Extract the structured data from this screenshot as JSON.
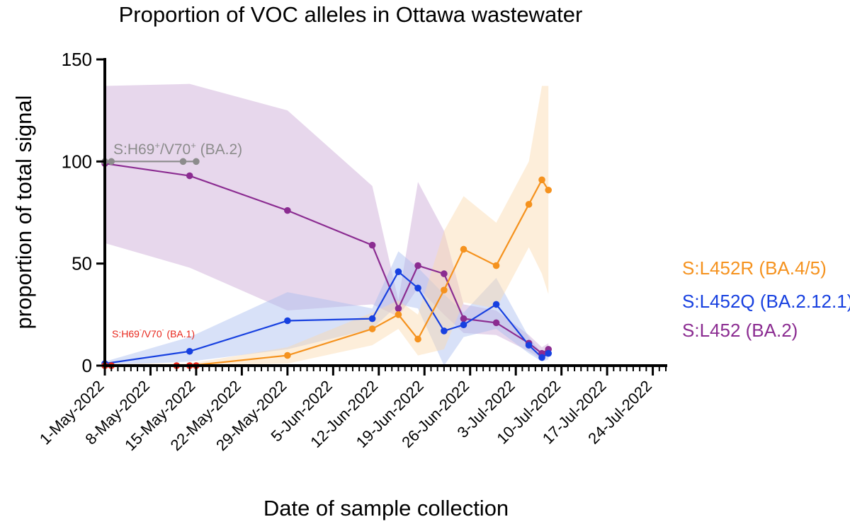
{
  "chart_data": {
    "type": "line",
    "title": "Proportion of VOC alleles in Ottawa wastewater",
    "xlabel": "Date of sample collection",
    "ylabel": "proportion of total signal",
    "xlim": [
      "2022-05-01",
      "2022-07-26"
    ],
    "ylim": [
      0,
      150
    ],
    "y_ticks": [
      0,
      50,
      100,
      150
    ],
    "x_ticks": [
      {
        "date": "2022-05-01",
        "label": "1-May-2022"
      },
      {
        "date": "2022-05-08",
        "label": "8-May-2022"
      },
      {
        "date": "2022-05-15",
        "label": "15-May-2022"
      },
      {
        "date": "2022-05-22",
        "label": "22-May-2022"
      },
      {
        "date": "2022-05-29",
        "label": "29-May-2022"
      },
      {
        "date": "2022-06-05",
        "label": "5-Jun-2022"
      },
      {
        "date": "2022-06-12",
        "label": "12-Jun-2022"
      },
      {
        "date": "2022-06-19",
        "label": "19-Jun-2022"
      },
      {
        "date": "2022-06-26",
        "label": "26-Jun-2022"
      },
      {
        "date": "2022-07-03",
        "label": "3-Jul-2022"
      },
      {
        "date": "2022-07-10",
        "label": "10-Jul-2022"
      },
      {
        "date": "2022-07-17",
        "label": "17-Jul-2022"
      },
      {
        "date": "2022-07-24",
        "label": "24-Jul-2022"
      }
    ],
    "grid": false,
    "legend_position": "right",
    "series": [
      {
        "key": "L452",
        "name": "S:L452 (BA.2)",
        "color": "#8B2C91",
        "band_color": "#C9A6D4",
        "points": [
          {
            "x": "2022-05-01",
            "y": 99,
            "lo": 60,
            "hi": 137
          },
          {
            "x": "2022-05-14",
            "y": 93,
            "lo": 48,
            "hi": 138
          },
          {
            "x": "2022-05-29",
            "y": 76,
            "lo": 27,
            "hi": 125
          },
          {
            "x": "2022-06-11",
            "y": 59,
            "lo": 30,
            "hi": 88
          },
          {
            "x": "2022-06-15",
            "y": 28,
            "lo": 24,
            "hi": 32
          },
          {
            "x": "2022-06-18",
            "y": 49,
            "lo": 38,
            "hi": 90
          },
          {
            "x": "2022-06-22",
            "y": 45,
            "lo": 25,
            "hi": 66
          },
          {
            "x": "2022-06-25",
            "y": 23,
            "lo": 16,
            "hi": 30
          },
          {
            "x": "2022-06-30",
            "y": 21,
            "lo": 15,
            "hi": 27
          },
          {
            "x": "2022-07-05",
            "y": 11,
            "lo": 7,
            "hi": 15
          },
          {
            "x": "2022-07-07",
            "y": 6,
            "lo": 3,
            "hi": 9
          },
          {
            "x": "2022-07-08",
            "y": 8,
            "lo": 5,
            "hi": 11
          }
        ]
      },
      {
        "key": "L452Q",
        "name": "S:L452Q (BA.2.12.1)",
        "color": "#1740E0",
        "band_color": "#A9BDF0",
        "points": [
          {
            "x": "2022-05-01",
            "y": 1,
            "lo": 0,
            "hi": 2
          },
          {
            "x": "2022-05-14",
            "y": 7,
            "lo": 2,
            "hi": 14
          },
          {
            "x": "2022-05-29",
            "y": 22,
            "lo": 8,
            "hi": 36
          },
          {
            "x": "2022-06-11",
            "y": 23,
            "lo": 18,
            "hi": 28
          },
          {
            "x": "2022-06-15",
            "y": 46,
            "lo": 30,
            "hi": 56
          },
          {
            "x": "2022-06-18",
            "y": 38,
            "lo": 28,
            "hi": 48
          },
          {
            "x": "2022-06-22",
            "y": 17,
            "lo": 0,
            "hi": 35
          },
          {
            "x": "2022-06-25",
            "y": 20,
            "lo": 14,
            "hi": 26
          },
          {
            "x": "2022-06-30",
            "y": 30,
            "lo": 18,
            "hi": 43
          },
          {
            "x": "2022-07-05",
            "y": 10,
            "lo": 6,
            "hi": 14
          },
          {
            "x": "2022-07-07",
            "y": 4,
            "lo": 2,
            "hi": 6
          },
          {
            "x": "2022-07-08",
            "y": 6,
            "lo": 3,
            "hi": 9
          }
        ]
      },
      {
        "key": "L452R",
        "name": "S:L452R (BA.4/5)",
        "color": "#F5921E",
        "band_color": "#FAD9AE",
        "points": [
          {
            "x": "2022-05-01",
            "y": 0,
            "lo": 0,
            "hi": 1
          },
          {
            "x": "2022-05-14",
            "y": 0,
            "lo": 0,
            "hi": 1
          },
          {
            "x": "2022-05-29",
            "y": 5,
            "lo": 1,
            "hi": 9
          },
          {
            "x": "2022-06-11",
            "y": 18,
            "lo": 10,
            "hi": 26
          },
          {
            "x": "2022-06-15",
            "y": 25,
            "lo": 18,
            "hi": 32
          },
          {
            "x": "2022-06-18",
            "y": 13,
            "lo": 5,
            "hi": 25
          },
          {
            "x": "2022-06-22",
            "y": 37,
            "lo": 8,
            "hi": 66
          },
          {
            "x": "2022-06-25",
            "y": 57,
            "lo": 31,
            "hi": 83
          },
          {
            "x": "2022-06-30",
            "y": 49,
            "lo": 28,
            "hi": 70
          },
          {
            "x": "2022-07-05",
            "y": 79,
            "lo": 58,
            "hi": 100
          },
          {
            "x": "2022-07-07",
            "y": 91,
            "lo": 45,
            "hi": 137
          },
          {
            "x": "2022-07-08",
            "y": 86,
            "lo": 35,
            "hi": 137
          }
        ]
      },
      {
        "key": "H69",
        "name": "S:H69+/V70+ (BA.2)",
        "color": "#8C8C8C",
        "points": [
          {
            "x": "2022-05-01",
            "y": 100
          },
          {
            "x": "2022-05-02",
            "y": 100
          },
          {
            "x": "2022-05-13",
            "y": 100
          },
          {
            "x": "2022-05-15",
            "y": 100
          }
        ]
      },
      {
        "key": "H69del",
        "name": "S:H69-/V70- (BA.1)",
        "color": "#E8271C",
        "points": [
          {
            "x": "2022-05-01",
            "y": 0
          },
          {
            "x": "2022-05-02",
            "y": 0
          },
          {
            "x": "2022-05-12",
            "y": 0
          },
          {
            "x": "2022-05-14",
            "y": 0
          },
          {
            "x": "2022-05-15",
            "y": 0
          }
        ]
      }
    ],
    "legend": [
      {
        "text": "S:L452R (BA.4/5)",
        "color": "#F5921E"
      },
      {
        "text": "S:L452Q (BA.2.12.1)",
        "color": "#1740E0"
      },
      {
        "text": "S:L452 (BA.2)",
        "color": "#8B2C91"
      }
    ],
    "annotations": [
      {
        "key": "H69",
        "base1": "S:H69",
        "sup1": "+",
        "base2": "/V70",
        "sup2": "+",
        "tail": " (BA.2)",
        "color": "#8C8C8C"
      },
      {
        "key": "H69del",
        "base1": "S:H69",
        "sup1": "-",
        "base2": "/V70",
        "sup2": "-",
        "tail": " (BA.1)",
        "color": "#E8271C"
      }
    ]
  }
}
